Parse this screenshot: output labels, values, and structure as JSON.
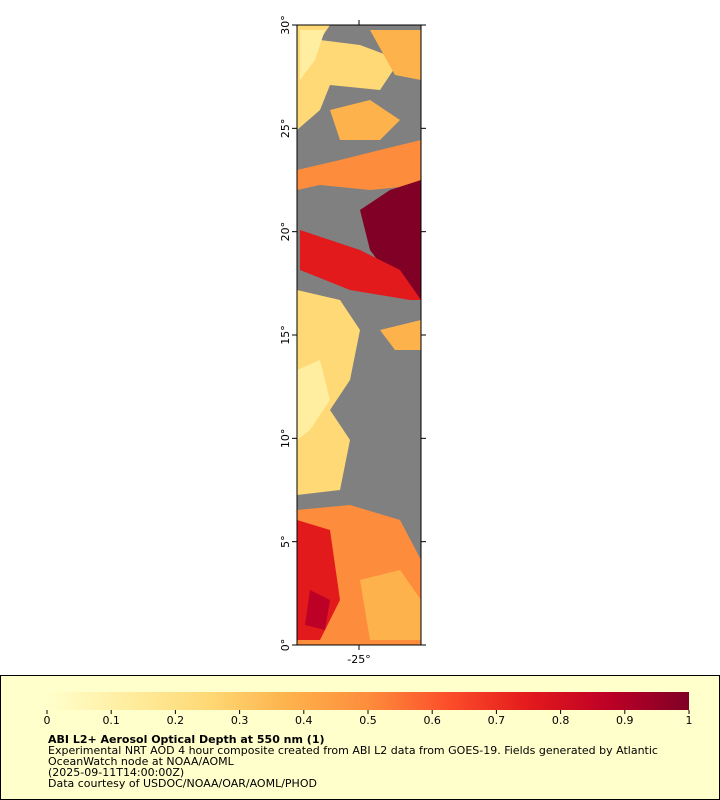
{
  "map": {
    "xlim": [
      -28,
      -22
    ],
    "ylim": [
      0,
      30
    ],
    "xticks": [
      {
        "value": -25,
        "label": "-25°"
      }
    ],
    "yticks": [
      {
        "value": 0,
        "label": "0°"
      },
      {
        "value": 5,
        "label": "5°"
      },
      {
        "value": 10,
        "label": "10°"
      },
      {
        "value": 15,
        "label": "15°"
      },
      {
        "value": 20,
        "label": "20°"
      },
      {
        "value": 25,
        "label": "25°"
      },
      {
        "value": 30,
        "label": "30°"
      }
    ]
  },
  "colorbar": {
    "lim": [
      0,
      1
    ],
    "ticks": [
      0,
      0.1,
      0.2,
      0.3,
      0.4,
      0.5,
      0.6,
      0.7,
      0.8,
      0.9,
      1
    ],
    "colors": [
      "#ffffcc",
      "#ffeda0",
      "#fed976",
      "#feb24c",
      "#fd8d3c",
      "#fc4e2a",
      "#e31a1c",
      "#bd0026",
      "#800026"
    ]
  },
  "legend": {
    "title": "ABI L2+ Aerosol Optical Depth at 550 nm (1)",
    "lines": [
      "Experimental NRT AOD 4 hour composite created from ABI L2 data from GOES-19. Fields generated by Atlantic",
      "OceanWatch node at NOAA/AOML",
      "(2025-09-11T14:00:00Z)",
      "Data courtesy of USDOC/NOAA/OAR/AOML/PHOD"
    ]
  }
}
